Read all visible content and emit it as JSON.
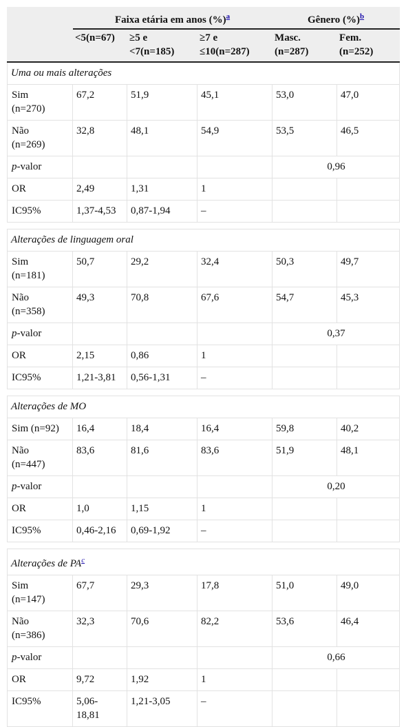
{
  "header": {
    "age_group": "Faixa etária em anos (%)",
    "age_note": "a",
    "gender_group": "Gênero (%)",
    "gender_note": "b",
    "columns": [
      [
        "<5(n=67)"
      ],
      [
        "≥5 e",
        "<7(n=185)"
      ],
      [
        "≥7 e",
        "≤10(n=287)"
      ],
      [
        "Masc.",
        "(n=287)"
      ],
      [
        "Fem.",
        "(n=252)"
      ]
    ]
  },
  "p_label_italic": "p",
  "p_label_rest": "-valor",
  "sections": [
    {
      "title": "Uma ou mais alterações",
      "rows": [
        {
          "label": [
            "Sim",
            "(n=270)"
          ],
          "cells": [
            "67,2",
            "51,9",
            "45,1",
            "53,0",
            "47,0"
          ]
        },
        {
          "label": [
            "Não",
            "(n=269)"
          ],
          "cells": [
            "32,8",
            "48,1",
            "54,9",
            "53,5",
            "46,5"
          ]
        }
      ],
      "p_value": "0,96",
      "stats": [
        {
          "label": [
            "OR"
          ],
          "cells": [
            "2,49",
            "1,31",
            "1"
          ]
        },
        {
          "label": [
            "IC95%"
          ],
          "cells": [
            "1,37-4,53",
            "0,87-1,94",
            "–"
          ]
        }
      ]
    },
    {
      "title": "Alterações de linguagem oral",
      "rows": [
        {
          "label": [
            "Sim",
            "(n=181)"
          ],
          "cells": [
            "50,7",
            "29,2",
            "32,4",
            "50,3",
            "49,7"
          ]
        },
        {
          "label": [
            "Não",
            "(n=358)"
          ],
          "cells": [
            "49,3",
            "70,8",
            "67,6",
            "54,7",
            "45,3"
          ]
        }
      ],
      "p_value": "0,37",
      "stats": [
        {
          "label": [
            "OR"
          ],
          "cells": [
            "2,15",
            "0,86",
            "1"
          ]
        },
        {
          "label": [
            "IC95%"
          ],
          "cells": [
            "1,21-3,81",
            "0,56-1,31",
            "–"
          ]
        }
      ]
    },
    {
      "title": "Alterações de MO",
      "rows": [
        {
          "label": [
            "Sim (n=92)"
          ],
          "cells": [
            "16,4",
            "18,4",
            "16,4",
            "59,8",
            "40,2"
          ]
        },
        {
          "label": [
            "Não",
            "(n=447)"
          ],
          "cells": [
            "83,6",
            "81,6",
            "83,6",
            "51,9",
            "48,1"
          ]
        }
      ],
      "p_value": "0,20",
      "stats": [
        {
          "label": [
            "OR"
          ],
          "cells": [
            "1,0",
            "1,15",
            "1"
          ]
        },
        {
          "label": [
            "IC95%"
          ],
          "cells": [
            "0,46-2,16",
            "0,69-1,92",
            "–"
          ]
        }
      ]
    },
    {
      "title": "Alterações de PA",
      "title_note": "c",
      "rows": [
        {
          "label": [
            "Sim",
            "(n=147)"
          ],
          "cells": [
            "67,7",
            "29,3",
            "17,8",
            "51,0",
            "49,0"
          ]
        },
        {
          "label": [
            "Não",
            "(n=386)"
          ],
          "cells": [
            "32,3",
            "70,6",
            "82,2",
            "53,6",
            "46,4"
          ]
        }
      ],
      "p_value": "0,66",
      "stats": [
        {
          "label": [
            "OR"
          ],
          "cells": [
            "9,72",
            "1,92",
            "1"
          ]
        },
        {
          "label": [
            "IC95%"
          ],
          "cells": [
            [
              "5,06-",
              "18,81"
            ],
            "1,21-3,05",
            "–"
          ]
        }
      ]
    }
  ]
}
